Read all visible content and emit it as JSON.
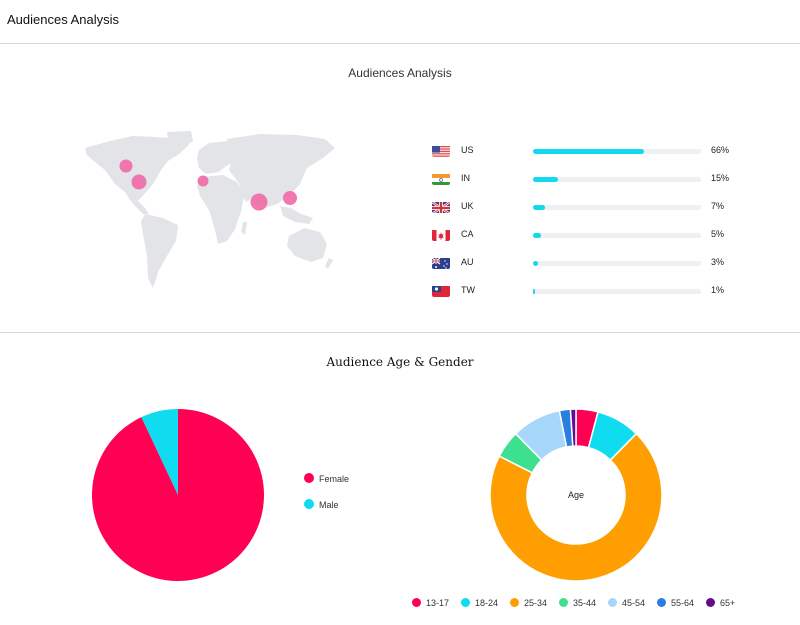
{
  "header": {
    "title": "Audiences Analysis"
  },
  "audience_section": {
    "title": "Audiences Analysis",
    "map": {
      "land_color": "#e3e4e8",
      "marker_color": "#f06ba8",
      "markers": [
        {
          "name": "Canada",
          "size": "small"
        },
        {
          "name": "United States",
          "size": "medium"
        },
        {
          "name": "United Kingdom",
          "size": "small"
        },
        {
          "name": "India",
          "size": "large"
        },
        {
          "name": "Taiwan",
          "size": "medium"
        }
      ]
    }
  },
  "chart_data": [
    {
      "type": "bar",
      "orientation": "horizontal",
      "categories": [
        "US",
        "IN",
        "UK",
        "CA",
        "AU",
        "TW"
      ],
      "values": [
        66,
        15,
        7,
        5,
        3,
        1
      ],
      "value_labels": [
        "66%",
        "15%",
        "7%",
        "5%",
        "3%",
        "1%"
      ],
      "unit": "%",
      "xlim": [
        0,
        100
      ],
      "bar_color": "#13d8ef",
      "track_color": "#eef0f3",
      "flags": [
        "us-flag-icon",
        "india-flag-icon",
        "uk-flag-icon",
        "canada-flag-icon",
        "australia-flag-icon",
        "taiwan-flag-icon"
      ]
    },
    {
      "type": "pie",
      "title": "Audience Age & Gender",
      "labels": [
        "Female",
        "Male"
      ],
      "values": [
        93,
        7
      ],
      "colors": [
        "#ff0052",
        "#10dcf0"
      ],
      "legend": "right"
    },
    {
      "type": "pie",
      "variant": "donut",
      "center_label": "Age",
      "labels": [
        "13-17",
        "18-24",
        "25-34",
        "35-44",
        "45-54",
        "55-64",
        "65+"
      ],
      "values": [
        4,
        8,
        68,
        5,
        9,
        2,
        1
      ],
      "colors": [
        "#ff0052",
        "#10dcf0",
        "#ff9e00",
        "#3de08e",
        "#a6d6fa",
        "#2a7ee0",
        "#650b8e"
      ],
      "legend": "bottom"
    }
  ]
}
